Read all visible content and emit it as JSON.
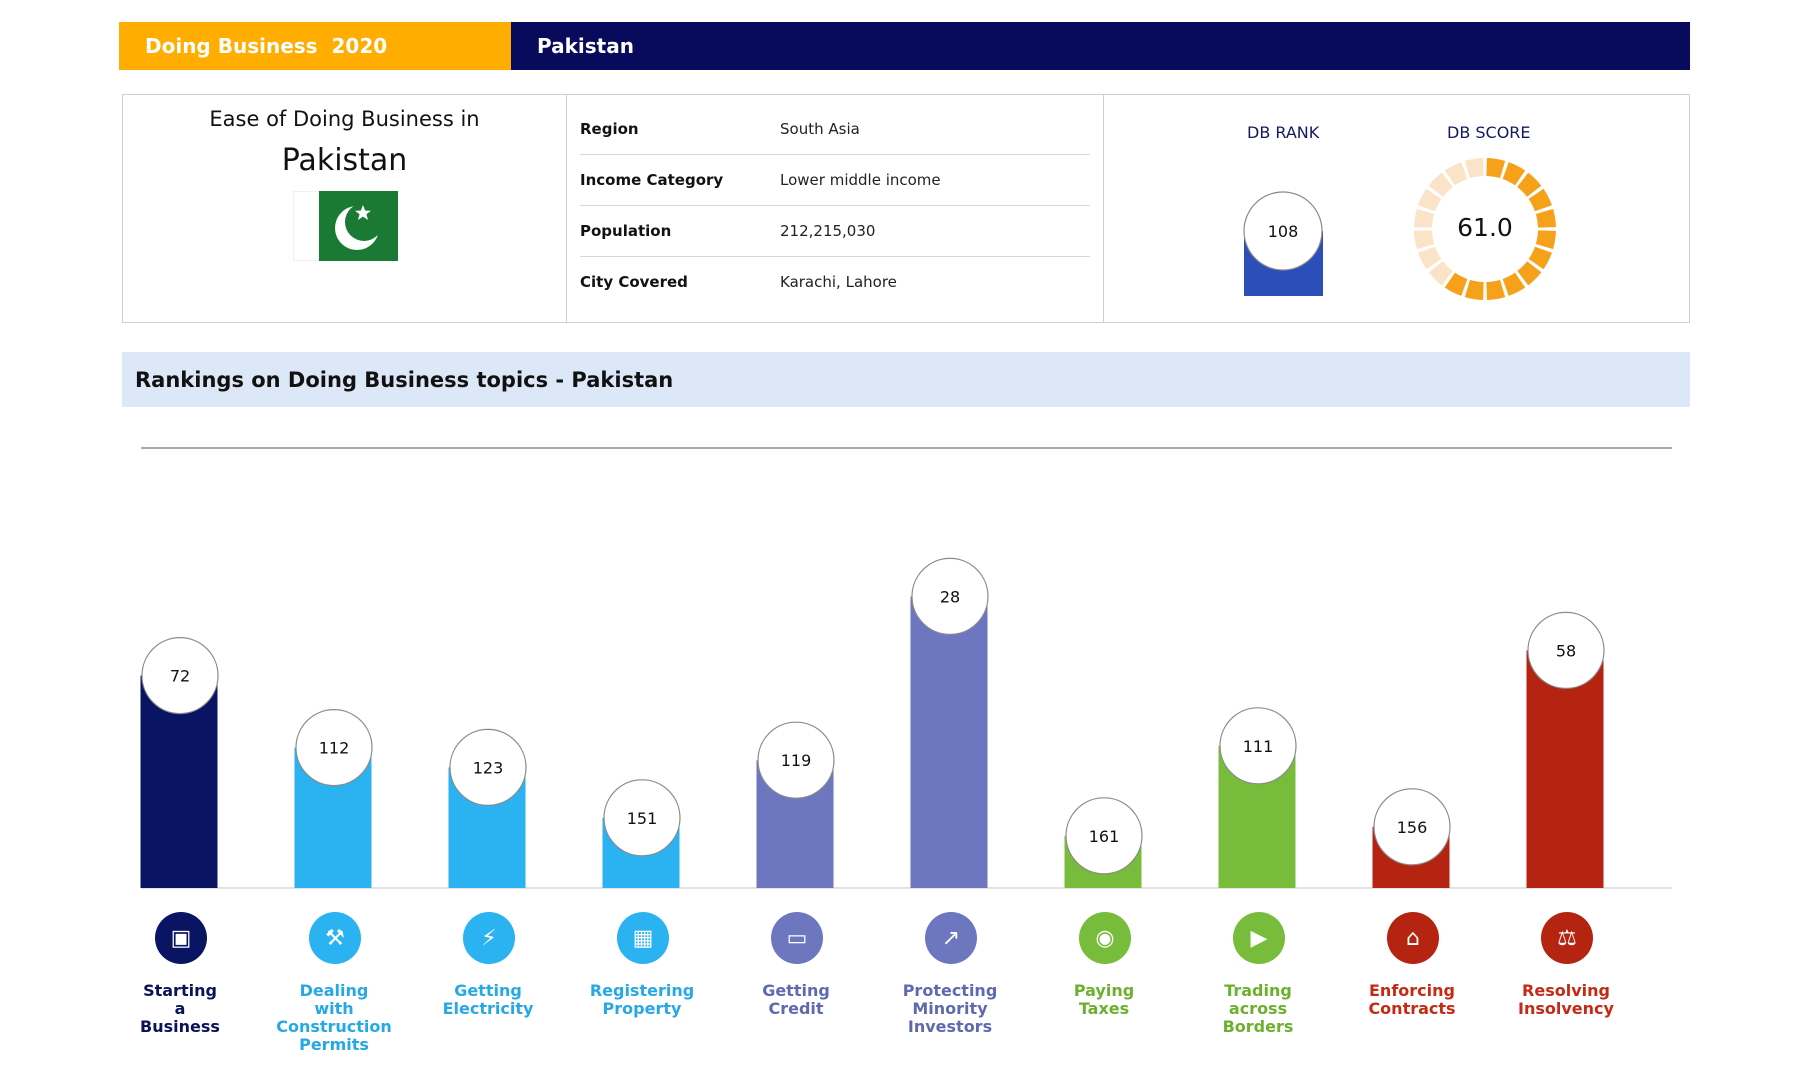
{
  "header": {
    "left_title": "Doing Business  2020",
    "right_title": "Pakistan"
  },
  "profile": {
    "ease_label": "Ease of Doing Business in",
    "country": "Pakistan",
    "flag": "pakistan-flag",
    "region_label": "Region",
    "region": "South Asia",
    "income_label": "Income Category",
    "income": "Lower middle income",
    "population_label": "Population",
    "population": "212,215,030",
    "city_label": "City Covered",
    "city": "Karachi, Lahore"
  },
  "kpi": {
    "rank_label": "DB RANK",
    "rank": "108",
    "score_label": "DB SCORE",
    "score": "61.0",
    "score_value": 61.0
  },
  "section_title": "Rankings on Doing Business topics - Pakistan",
  "colors": {
    "header_orange": "#FFAD00",
    "header_navy": "#080A5B",
    "rank_bar": "#2B4EB8",
    "score_fill": "#F5A11A",
    "score_rest": "#FBE3C7"
  },
  "chart_data": {
    "type": "bar",
    "title": "Rankings on Doing Business topics - Pakistan",
    "categories": [
      "Starting a Business",
      "Dealing with Construction Permits",
      "Getting Electricity",
      "Registering Property",
      "Getting Credit",
      "Protecting Minority Investors",
      "Paying Taxes",
      "Trading across Borders",
      "Enforcing Contracts",
      "Resolving Insolvency"
    ],
    "category_lines": [
      [
        "Starting",
        "a",
        "Business"
      ],
      [
        "Dealing",
        "with",
        "Construction",
        "Permits"
      ],
      [
        "Getting",
        "Electricity"
      ],
      [
        "Registering",
        "Property"
      ],
      [
        "Getting",
        "Credit"
      ],
      [
        "Protecting",
        "Minority",
        "Investors"
      ],
      [
        "Paying",
        "Taxes"
      ],
      [
        "Trading",
        "across",
        "Borders"
      ],
      [
        "Enforcing",
        "Contracts"
      ],
      [
        "Resolving",
        "Insolvency"
      ]
    ],
    "values": [
      72,
      112,
      123,
      151,
      119,
      28,
      161,
      111,
      156,
      58
    ],
    "bar_colors": [
      "#091463",
      "#2BB2F0",
      "#2BB2F0",
      "#2BB2F0",
      "#6C77C0",
      "#6C77C0",
      "#78BC3C",
      "#78BC3C",
      "#B42411",
      "#B42411"
    ],
    "label_colors": [
      "#0A1258",
      "#27A8E6",
      "#27A8E6",
      "#27A8E6",
      "#5E69B0",
      "#5E69B0",
      "#6DB02E",
      "#6DB02E",
      "#C42A14",
      "#C42A14"
    ],
    "icons": [
      "building-icon",
      "tools-icon",
      "lightning-icon",
      "property-icon",
      "credit-card-icon",
      "trend-up-icon",
      "money-icon",
      "truck-icon",
      "courthouse-icon",
      "gavel-icon"
    ],
    "ylim": [
      0,
      190
    ],
    "inverted": true,
    "grid": false
  }
}
